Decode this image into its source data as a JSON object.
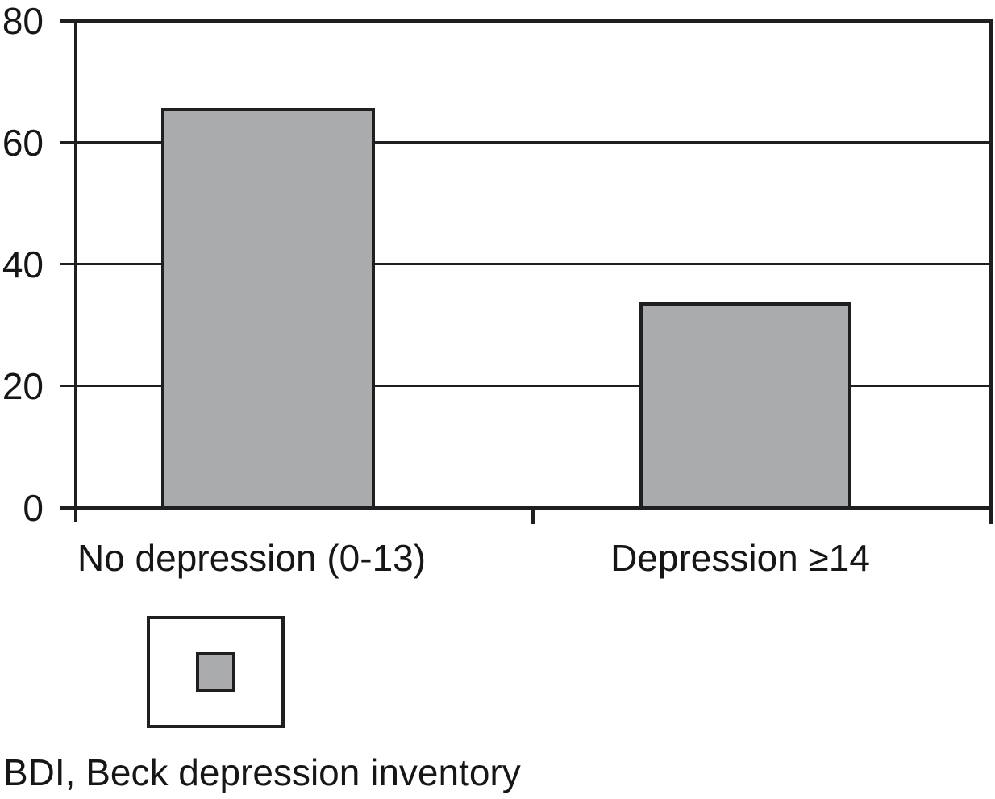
{
  "figure": {
    "background": "#ffffff",
    "line_color": "#1f1f22",
    "bar_fill": "#a9abad",
    "text_color": "#161618"
  },
  "chart_data": {
    "type": "bar",
    "categories": [
      "No depression (0-13)",
      "Depression ≥14"
    ],
    "values": [
      66,
      34
    ],
    "title": "",
    "xlabel": "",
    "ylabel": "",
    "ylim": [
      0,
      80
    ],
    "yticks": [
      0,
      20,
      40,
      60,
      80
    ],
    "grid": true,
    "legend": {
      "position": "below-left",
      "entries": [
        {
          "swatch_color": "#a9abad"
        }
      ]
    }
  },
  "caption": "BDI, Beck depression inventory"
}
